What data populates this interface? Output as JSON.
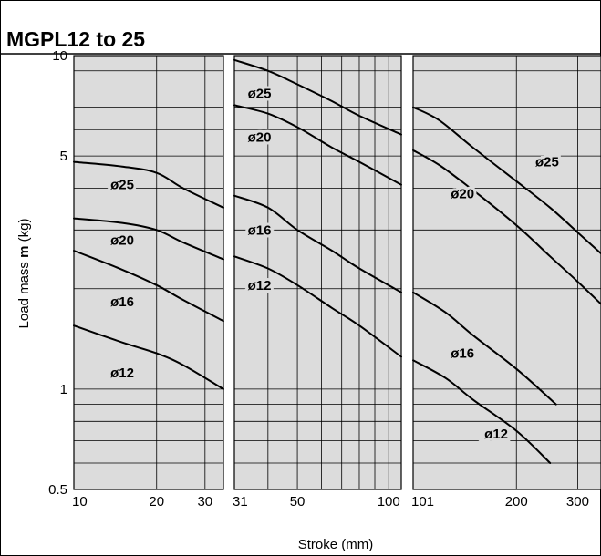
{
  "chart_data": {
    "type": "line",
    "title": "MGPL12 to 25",
    "ylabel_prefix": "Load mass ",
    "ylabel_bold": "m",
    "ylabel_suffix": " (kg)",
    "xlabel": "Stroke (mm)",
    "y_scale": "log",
    "ylim": [
      0.5,
      10
    ],
    "y_ticks": [
      {
        "value": 10,
        "label": "10"
      },
      {
        "value": 5,
        "label": "5"
      },
      {
        "value": 1,
        "label": "1"
      },
      {
        "value": 0.5,
        "label": "0.5"
      }
    ],
    "x_scale": "log",
    "grid": true,
    "background": "#dcdcdc",
    "line_color": "#000000",
    "panels": [
      {
        "xlim": [
          10,
          35
        ],
        "x_ticks": [
          {
            "value": 10,
            "label": "10"
          },
          {
            "value": 20,
            "label": "20"
          },
          {
            "value": 30,
            "label": "30"
          }
        ],
        "x_gridlines": [
          20,
          30
        ],
        "series": [
          {
            "name": "ø25",
            "label_at": [
              15,
              4.1
            ],
            "points": [
              [
                10,
                4.8
              ],
              [
                15,
                4.65
              ],
              [
                20,
                4.45
              ],
              [
                25,
                4.0
              ],
              [
                35,
                3.5
              ]
            ]
          },
          {
            "name": "ø20",
            "label_at": [
              15,
              2.8
            ],
            "points": [
              [
                10,
                3.25
              ],
              [
                15,
                3.15
              ],
              [
                20,
                3.0
              ],
              [
                25,
                2.75
              ],
              [
                35,
                2.45
              ]
            ]
          },
          {
            "name": "ø16",
            "label_at": [
              15,
              1.83
            ],
            "points": [
              [
                10,
                2.6
              ],
              [
                15,
                2.28
              ],
              [
                20,
                2.05
              ],
              [
                25,
                1.85
              ],
              [
                35,
                1.6
              ]
            ]
          },
          {
            "name": "ø12",
            "label_at": [
              15,
              1.12
            ],
            "points": [
              [
                10,
                1.55
              ],
              [
                15,
                1.38
              ],
              [
                20,
                1.28
              ],
              [
                25,
                1.18
              ],
              [
                35,
                1.0
              ]
            ]
          }
        ]
      },
      {
        "xlim": [
          31,
          110
        ],
        "x_ticks": [
          {
            "value": 31,
            "label": "31"
          },
          {
            "value": 50,
            "label": "50"
          },
          {
            "value": 100,
            "label": "100"
          }
        ],
        "x_gridlines": [
          40,
          50,
          60,
          70,
          80,
          90,
          100
        ],
        "series": [
          {
            "name": "ø25",
            "label_at": [
              37.5,
              7.7
            ],
            "points": [
              [
                31,
                9.7
              ],
              [
                40,
                9.0
              ],
              [
                50,
                8.2
              ],
              [
                65,
                7.3
              ],
              [
                80,
                6.6
              ],
              [
                110,
                5.8
              ]
            ]
          },
          {
            "name": "ø20",
            "label_at": [
              37.5,
              5.7
            ],
            "points": [
              [
                31,
                7.1
              ],
              [
                40,
                6.7
              ],
              [
                50,
                6.1
              ],
              [
                65,
                5.3
              ],
              [
                80,
                4.8
              ],
              [
                110,
                4.1
              ]
            ]
          },
          {
            "name": "ø16",
            "label_at": [
              37.5,
              3.0
            ],
            "points": [
              [
                31,
                3.8
              ],
              [
                40,
                3.5
              ],
              [
                50,
                3.0
              ],
              [
                65,
                2.6
              ],
              [
                80,
                2.3
              ],
              [
                110,
                1.95
              ]
            ]
          },
          {
            "name": "ø12",
            "label_at": [
              37.5,
              2.05
            ],
            "points": [
              [
                31,
                2.5
              ],
              [
                40,
                2.3
              ],
              [
                50,
                2.05
              ],
              [
                65,
                1.75
              ],
              [
                80,
                1.55
              ],
              [
                110,
                1.25
              ]
            ]
          }
        ]
      },
      {
        "xlim": [
          101,
          350
        ],
        "x_ticks": [
          {
            "value": 101,
            "label": "101"
          },
          {
            "value": 200,
            "label": "200"
          },
          {
            "value": 300,
            "label": "300"
          }
        ],
        "x_gridlines": [
          200,
          300
        ],
        "series": [
          {
            "name": "ø25",
            "label_at": [
              245,
              4.8
            ],
            "points": [
              [
                101,
                7.0
              ],
              [
                120,
                6.4
              ],
              [
                150,
                5.3
              ],
              [
                200,
                4.2
              ],
              [
                250,
                3.5
              ],
              [
                300,
                2.95
              ],
              [
                350,
                2.55
              ]
            ]
          },
          {
            "name": "ø20",
            "label_at": [
              140,
              3.85
            ],
            "points": [
              [
                101,
                5.2
              ],
              [
                120,
                4.7
              ],
              [
                150,
                3.95
              ],
              [
                200,
                3.1
              ],
              [
                250,
                2.5
              ],
              [
                300,
                2.1
              ],
              [
                350,
                1.8
              ]
            ]
          },
          {
            "name": "ø16",
            "label_at": [
              140,
              1.28
            ],
            "points": [
              [
                101,
                1.95
              ],
              [
                125,
                1.7
              ],
              [
                150,
                1.45
              ],
              [
                200,
                1.15
              ],
              [
                260,
                0.9
              ]
            ]
          },
          {
            "name": "ø12",
            "label_at": [
              175,
              0.735
            ],
            "points": [
              [
                101,
                1.22
              ],
              [
                125,
                1.08
              ],
              [
                150,
                0.93
              ],
              [
                200,
                0.75
              ],
              [
                250,
                0.6
              ]
            ]
          }
        ]
      }
    ]
  }
}
